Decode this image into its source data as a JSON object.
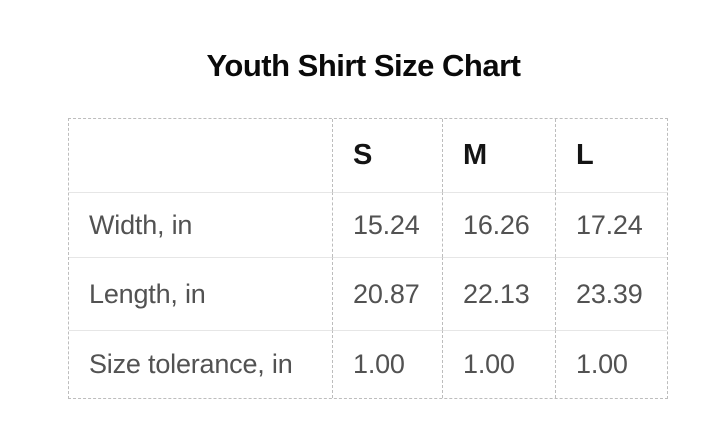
{
  "title": "Youth Shirt Size Chart",
  "table": {
    "columns": [
      "",
      "S",
      "M",
      "L"
    ],
    "rows": [
      {
        "label": "Width, in",
        "cells": [
          "15.24",
          "16.26",
          "17.24"
        ]
      },
      {
        "label": "Length, in",
        "cells": [
          "20.87",
          "22.13",
          "23.39"
        ]
      },
      {
        "label": "Size tolerance, in",
        "cells": [
          "1.00",
          "1.00",
          "1.00"
        ]
      }
    ]
  },
  "colors": {
    "background": "#ffffff",
    "title_text": "#0a0a0a",
    "header_text": "#141414",
    "cell_text": "#525252",
    "dashed_border": "#bdbdbd",
    "row_separator": "#e6e6e6"
  },
  "chart_data": {
    "type": "table",
    "title": "Youth Shirt Size Chart",
    "columns": [
      "S",
      "M",
      "L"
    ],
    "row_labels": [
      "Width, in",
      "Length, in",
      "Size tolerance, in"
    ],
    "rows": [
      {
        "label": "Width, in",
        "values": [
          15.24,
          16.26,
          17.24
        ]
      },
      {
        "label": "Length, in",
        "values": [
          20.87,
          22.13,
          23.39
        ]
      },
      {
        "label": "Size tolerance, in",
        "values": [
          1.0,
          1.0,
          1.0
        ]
      }
    ],
    "units": "inches",
    "layout": {
      "grid": "dashed outer border and column dividers, light solid row separators",
      "legend": "none"
    }
  }
}
